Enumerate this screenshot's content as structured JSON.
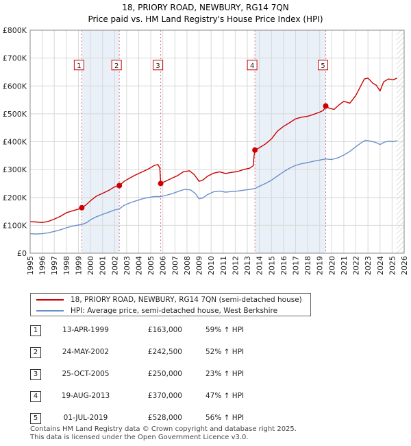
{
  "title_line1": "18, PRIORY ROAD, NEWBURY, RG14 7QN",
  "title_line2": "Price paid vs. HM Land Registry's House Price Index (HPI)",
  "colors": {
    "property": "#cc0000",
    "hpi": "#6a8fca",
    "shade": "#eaf0f8",
    "grid": "#d8d8d8",
    "vline": "#e07080"
  },
  "chart_data": {
    "type": "line",
    "title": "18, PRIORY ROAD, NEWBURY, RG14 7QN — Price paid vs. HM Land Registry's House Price Index (HPI)",
    "xlim": [
      1995,
      2026
    ],
    "ylim": [
      0,
      800000
    ],
    "y_ticks": [
      0,
      100000,
      200000,
      300000,
      400000,
      500000,
      600000,
      700000,
      800000
    ],
    "y_tick_labels": [
      "£0",
      "£100K",
      "£200K",
      "£300K",
      "£400K",
      "£500K",
      "£600K",
      "£700K",
      "£800K"
    ],
    "x_ticks": [
      1995,
      1996,
      1997,
      1998,
      1999,
      2000,
      2001,
      2002,
      2003,
      2004,
      2005,
      2006,
      2007,
      2008,
      2009,
      2010,
      2011,
      2012,
      2013,
      2014,
      2015,
      2016,
      2017,
      2018,
      2019,
      2020,
      2021,
      2022,
      2023,
      2024,
      2025,
      2026
    ],
    "x_tick_labels": [
      "1995",
      "1996",
      "1997",
      "1998",
      "1999",
      "2000",
      "2001",
      "2002",
      "2003",
      "2004",
      "2005",
      "2006",
      "2007",
      "2008",
      "2009",
      "2010",
      "2011",
      "2012",
      "2013",
      "2014",
      "2015",
      "2016",
      "2017",
      "2018",
      "2019",
      "2020",
      "2021",
      "2022",
      "2023",
      "2024",
      "2025",
      "2026"
    ],
    "shaded_ranges": [
      [
        1999.28,
        2002.39
      ],
      [
        2013.63,
        2019.5
      ]
    ],
    "future_hatch_from": 2025.35,
    "series": [
      {
        "name": "18, PRIORY ROAD, NEWBURY, RG14 7QN (semi-detached house)",
        "color": "#cc0000",
        "points": [
          [
            1995.0,
            113000
          ],
          [
            1995.5,
            112000
          ],
          [
            1996.0,
            110000
          ],
          [
            1996.5,
            114000
          ],
          [
            1997.0,
            122000
          ],
          [
            1997.5,
            132000
          ],
          [
            1998.0,
            145000
          ],
          [
            1998.5,
            152000
          ],
          [
            1999.0,
            158000
          ],
          [
            1999.28,
            163000
          ],
          [
            1999.6,
            172000
          ],
          [
            2000.0,
            188000
          ],
          [
            2000.5,
            205000
          ],
          [
            2001.0,
            215000
          ],
          [
            2001.5,
            225000
          ],
          [
            2002.0,
            238000
          ],
          [
            2002.39,
            242500
          ],
          [
            2002.8,
            258000
          ],
          [
            2003.2,
            268000
          ],
          [
            2003.7,
            280000
          ],
          [
            2004.2,
            290000
          ],
          [
            2004.7,
            300000
          ],
          [
            2005.0,
            307000
          ],
          [
            2005.3,
            315000
          ],
          [
            2005.6,
            318000
          ],
          [
            2005.75,
            305000
          ],
          [
            2005.82,
            250000
          ],
          [
            2006.2,
            258000
          ],
          [
            2006.7,
            268000
          ],
          [
            2007.2,
            278000
          ],
          [
            2007.7,
            292000
          ],
          [
            2008.2,
            296000
          ],
          [
            2008.6,
            282000
          ],
          [
            2009.0,
            258000
          ],
          [
            2009.3,
            262000
          ],
          [
            2009.7,
            276000
          ],
          [
            2010.2,
            287000
          ],
          [
            2010.7,
            292000
          ],
          [
            2011.2,
            286000
          ],
          [
            2011.7,
            290000
          ],
          [
            2012.2,
            293000
          ],
          [
            2012.7,
            300000
          ],
          [
            2013.2,
            305000
          ],
          [
            2013.5,
            314000
          ],
          [
            2013.55,
            345000
          ],
          [
            2013.63,
            370000
          ],
          [
            2014.0,
            378000
          ],
          [
            2014.5,
            392000
          ],
          [
            2015.0,
            410000
          ],
          [
            2015.5,
            438000
          ],
          [
            2016.0,
            455000
          ],
          [
            2016.5,
            468000
          ],
          [
            2017.0,
            482000
          ],
          [
            2017.5,
            488000
          ],
          [
            2018.0,
            491000
          ],
          [
            2018.5,
            498000
          ],
          [
            2019.0,
            506000
          ],
          [
            2019.3,
            512000
          ],
          [
            2019.5,
            528000
          ],
          [
            2019.8,
            520000
          ],
          [
            2020.2,
            516000
          ],
          [
            2020.6,
            532000
          ],
          [
            2021.0,
            545000
          ],
          [
            2021.5,
            538000
          ],
          [
            2022.0,
            566000
          ],
          [
            2022.4,
            600000
          ],
          [
            2022.7,
            625000
          ],
          [
            2023.0,
            628000
          ],
          [
            2023.4,
            610000
          ],
          [
            2023.7,
            602000
          ],
          [
            2024.0,
            582000
          ],
          [
            2024.3,
            615000
          ],
          [
            2024.7,
            625000
          ],
          [
            2025.1,
            622000
          ],
          [
            2025.4,
            628000
          ]
        ]
      },
      {
        "name": "HPI: Average price, semi-detached house, West Berkshire",
        "color": "#6a8fca",
        "points": [
          [
            1995.0,
            70000
          ],
          [
            1995.5,
            69000
          ],
          [
            1996.0,
            70000
          ],
          [
            1996.5,
            73000
          ],
          [
            1997.0,
            78000
          ],
          [
            1997.5,
            84000
          ],
          [
            1998.0,
            91000
          ],
          [
            1998.5,
            97000
          ],
          [
            1999.0,
            101000
          ],
          [
            1999.28,
            103000
          ],
          [
            1999.7,
            110000
          ],
          [
            2000.0,
            120000
          ],
          [
            2000.5,
            131000
          ],
          [
            2001.0,
            139000
          ],
          [
            2001.5,
            147000
          ],
          [
            2002.0,
            155000
          ],
          [
            2002.39,
            159000
          ],
          [
            2002.8,
            172000
          ],
          [
            2003.3,
            181000
          ],
          [
            2003.8,
            188000
          ],
          [
            2004.3,
            195000
          ],
          [
            2004.8,
            200000
          ],
          [
            2005.3,
            203000
          ],
          [
            2005.82,
            203000
          ],
          [
            2006.3,
            208000
          ],
          [
            2006.8,
            214000
          ],
          [
            2007.3,
            222000
          ],
          [
            2007.8,
            229000
          ],
          [
            2008.3,
            227000
          ],
          [
            2008.7,
            214000
          ],
          [
            2009.0,
            195000
          ],
          [
            2009.3,
            198000
          ],
          [
            2009.7,
            210000
          ],
          [
            2010.2,
            220000
          ],
          [
            2010.7,
            223000
          ],
          [
            2011.2,
            219000
          ],
          [
            2011.7,
            221000
          ],
          [
            2012.2,
            223000
          ],
          [
            2012.7,
            226000
          ],
          [
            2013.2,
            229000
          ],
          [
            2013.63,
            232000
          ],
          [
            2014.0,
            240000
          ],
          [
            2014.5,
            250000
          ],
          [
            2015.0,
            262000
          ],
          [
            2015.5,
            277000
          ],
          [
            2016.0,
            292000
          ],
          [
            2016.5,
            305000
          ],
          [
            2017.0,
            315000
          ],
          [
            2017.5,
            321000
          ],
          [
            2018.0,
            325000
          ],
          [
            2018.5,
            330000
          ],
          [
            2019.0,
            334000
          ],
          [
            2019.5,
            338000
          ],
          [
            2020.0,
            336000
          ],
          [
            2020.5,
            342000
          ],
          [
            2021.0,
            352000
          ],
          [
            2021.5,
            365000
          ],
          [
            2022.0,
            382000
          ],
          [
            2022.5,
            398000
          ],
          [
            2022.8,
            405000
          ],
          [
            2023.2,
            402000
          ],
          [
            2023.6,
            398000
          ],
          [
            2024.0,
            390000
          ],
          [
            2024.4,
            399000
          ],
          [
            2024.8,
            402000
          ],
          [
            2025.1,
            400000
          ],
          [
            2025.4,
            404000
          ]
        ]
      }
    ],
    "sales": [
      {
        "id": "1",
        "x": 1999.28,
        "value": 163000
      },
      {
        "id": "2",
        "x": 2002.39,
        "value": 242500
      },
      {
        "id": "3",
        "x": 2005.82,
        "value": 250000
      },
      {
        "id": "4",
        "x": 2013.63,
        "value": 370000
      },
      {
        "id": "5",
        "x": 2019.5,
        "value": 528000
      }
    ],
    "marker_label_value": 675000
  },
  "legend": {
    "property_label": "18, PRIORY ROAD, NEWBURY, RG14 7QN (semi-detached house)",
    "hpi_label": "HPI: Average price, semi-detached house, West Berkshire"
  },
  "sales_table": [
    {
      "num": "1",
      "date": "13-APR-1999",
      "price": "£163,000",
      "hpi": "59% ↑ HPI"
    },
    {
      "num": "2",
      "date": "24-MAY-2002",
      "price": "£242,500",
      "hpi": "52% ↑ HPI"
    },
    {
      "num": "3",
      "date": "25-OCT-2005",
      "price": "£250,000",
      "hpi": "23% ↑ HPI"
    },
    {
      "num": "4",
      "date": "19-AUG-2013",
      "price": "£370,000",
      "hpi": "47% ↑ HPI"
    },
    {
      "num": "5",
      "date": "01-JUL-2019",
      "price": "£528,000",
      "hpi": "56% ↑ HPI"
    }
  ],
  "footer": {
    "line1": "Contains HM Land Registry data © Crown copyright and database right 2025.",
    "line2": "This data is licensed under the Open Government Licence v3.0."
  }
}
